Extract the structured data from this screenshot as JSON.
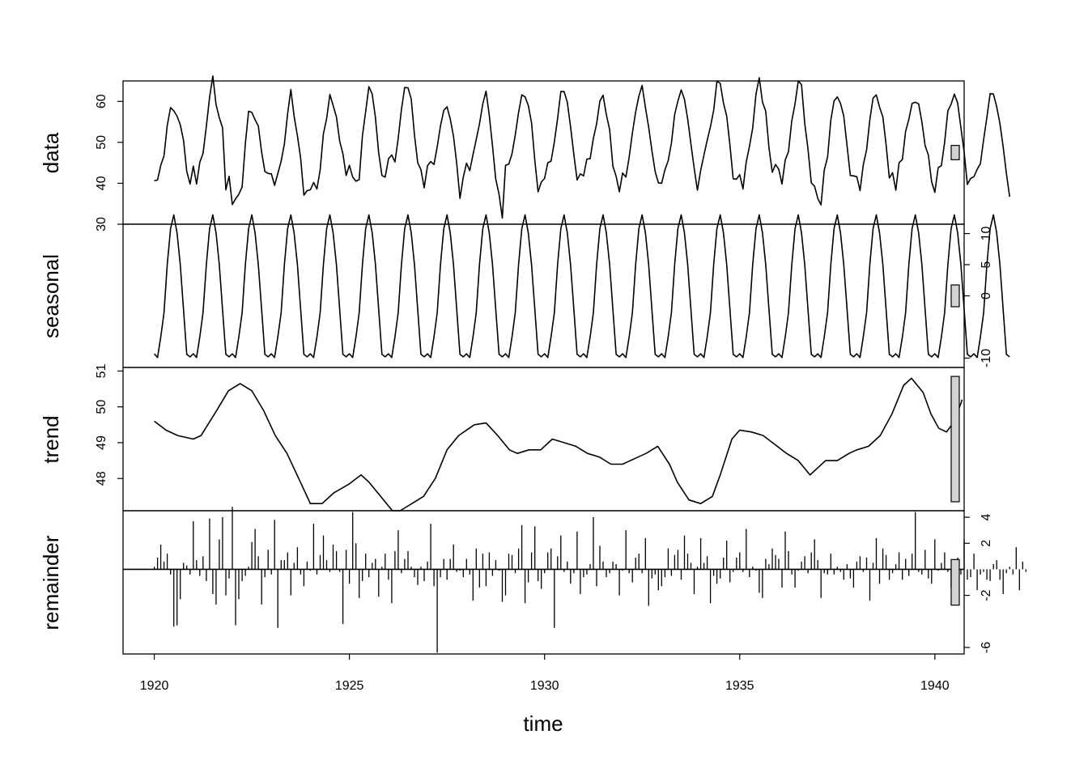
{
  "chart_data": {
    "type": "line",
    "xlabel": "time",
    "x_start": 1920,
    "frequency": 12,
    "xlim": [
      1919.2,
      1940.75
    ],
    "x_ticks": [
      1920,
      1925,
      1930,
      1935,
      1940
    ],
    "x_tick_labels": [
      "1920",
      "1925",
      "1930",
      "1935",
      "1940"
    ],
    "panels": [
      {
        "name": "data",
        "ylim": [
          30,
          65
        ],
        "y_ticks": [
          30,
          40,
          50,
          60
        ],
        "y_tick_labels": [
          "30",
          "40",
          "50",
          "60"
        ],
        "axis_side": "left",
        "values": [
          40.6,
          40.8,
          44.4,
          46.7,
          54.1,
          58.5,
          57.7,
          56.4,
          54.3,
          50.5,
          42.9,
          39.8,
          44.2,
          39.8,
          45.1,
          47.3,
          53.9,
          61.0,
          66.2,
          59.2,
          56.0,
          53.6,
          38.4,
          41.7,
          34.8,
          36.2,
          37.3,
          39.1,
          49.7,
          57.6,
          57.3,
          55.5,
          54.0,
          47.6,
          42.9,
          42.4,
          42.3,
          39.5,
          42.4,
          45.4,
          49.6,
          57.0,
          62.9,
          56.4,
          51.6,
          46.1,
          37.1,
          38.2,
          38.4,
          40.2,
          38.6,
          43.3,
          52.1,
          55.8,
          61.7,
          59.0,
          56.2,
          50.3,
          47.2,
          41.9,
          44.4,
          41.5,
          40.5,
          40.9,
          51.6,
          57.5,
          63.6,
          61.8,
          56.0,
          47.4,
          41.9,
          41.5,
          46.0,
          46.9,
          45.2,
          51.0,
          58.0,
          63.4,
          63.3,
          60.6,
          51.8,
          45.0,
          43.3,
          38.9,
          44.3,
          45.3,
          44.6,
          48.9,
          54.0,
          57.8,
          58.7,
          55.7,
          51.5,
          44.8,
          36.3,
          41.5,
          44.9,
          43.1,
          47.0,
          50.7,
          54.5,
          59.4,
          62.5,
          56.6,
          49.1,
          41.0,
          37.3,
          31.5,
          44.4,
          44.7,
          47.2,
          51.8,
          57.3,
          61.6,
          61.1,
          59.0,
          54.8,
          45.5,
          37.9,
          40.3,
          41.2,
          45.0,
          45.4,
          50.1,
          55.8,
          62.4,
          62.4,
          59.8,
          53.8,
          47.0,
          40.8,
          42.3,
          41.8,
          45.9,
          46.0,
          51.0,
          54.5,
          60.1,
          61.5,
          56.8,
          53.1,
          44.2,
          41.7,
          37.9,
          42.5,
          41.5,
          46.4,
          52.3,
          57.4,
          61.3,
          63.9,
          58.5,
          53.7,
          48.0,
          42.9,
          40.1,
          40.0,
          43.3,
          45.5,
          49.8,
          56.8,
          60.1,
          62.8,
          60.5,
          55.7,
          49.6,
          43.7,
          38.3,
          43.2,
          46.9,
          50.5,
          53.8,
          57.8,
          64.9,
          64.4,
          59.6,
          56.4,
          49.3,
          41.1,
          41.0,
          42.1,
          38.6,
          45.2,
          49.0,
          53.5,
          61.8,
          65.8,
          59.8,
          57.6,
          48.7,
          42.7,
          44.6,
          43.4,
          39.8,
          45.7,
          47.7,
          55.3,
          59.4,
          65.0,
          64.1,
          54.6,
          48.4,
          40.1,
          39.3,
          36.3,
          34.7,
          43.2,
          46.4,
          55.4,
          60.1,
          61.1,
          59.5,
          56.4,
          49.1,
          41.9,
          41.8,
          41.6,
          38.2,
          44.5,
          48.2,
          55.5,
          60.8,
          61.6,
          58.6,
          56.2,
          49.4,
          41.3,
          42.6,
          38.3,
          45.0,
          45.8,
          52.7,
          55.6,
          59.5,
          59.8,
          59.4,
          55.0,
          49.2,
          46.9,
          40.4,
          37.8,
          43.8,
          44.3,
          50.0,
          57.7,
          59.3,
          61.8,
          59.6,
          53.6,
          47.6,
          39.7,
          41.2,
          41.6,
          43.4,
          44.8,
          50.7,
          56.1,
          61.9,
          61.8,
          58.7,
          54.6,
          48.9,
          42.4,
          36.7
        ]
      },
      {
        "name": "seasonal",
        "ylim": [
          -11.5,
          11.5
        ],
        "y_ticks": [
          -10,
          0,
          5,
          10
        ],
        "y_tick_labels": [
          "-10",
          "0",
          "5",
          "10"
        ],
        "axis_side": "right",
        "pattern": [
          -9.3,
          -9.9,
          -6.6,
          -2.7,
          5.0,
          10.8,
          13.0,
          10.1,
          5.0,
          -2.2,
          -9.4,
          -9.8
        ]
      },
      {
        "name": "trend",
        "ylim": [
          47.1,
          51.1
        ],
        "y_ticks": [
          48,
          49,
          50,
          51
        ],
        "y_tick_labels": [
          "48",
          "49",
          "50",
          "51"
        ],
        "axis_side": "left",
        "points": [
          [
            1920.0,
            49.6
          ],
          [
            1920.3,
            49.35
          ],
          [
            1920.6,
            49.2
          ],
          [
            1921.0,
            49.1
          ],
          [
            1921.2,
            49.2
          ],
          [
            1921.6,
            49.9
          ],
          [
            1921.9,
            50.45
          ],
          [
            1922.2,
            50.65
          ],
          [
            1922.5,
            50.45
          ],
          [
            1922.8,
            49.9
          ],
          [
            1923.1,
            49.2
          ],
          [
            1923.4,
            48.7
          ],
          [
            1923.7,
            48.0
          ],
          [
            1924.0,
            47.3
          ],
          [
            1924.3,
            47.3
          ],
          [
            1924.6,
            47.6
          ],
          [
            1925.0,
            47.85
          ],
          [
            1925.3,
            48.1
          ],
          [
            1925.5,
            47.9
          ],
          [
            1925.8,
            47.5
          ],
          [
            1926.1,
            47.1
          ],
          [
            1926.3,
            47.1
          ],
          [
            1926.6,
            47.3
          ],
          [
            1926.9,
            47.5
          ],
          [
            1927.2,
            48.0
          ],
          [
            1927.5,
            48.8
          ],
          [
            1927.8,
            49.2
          ],
          [
            1928.2,
            49.5
          ],
          [
            1928.5,
            49.55
          ],
          [
            1928.8,
            49.2
          ],
          [
            1929.1,
            48.8
          ],
          [
            1929.3,
            48.7
          ],
          [
            1929.6,
            48.8
          ],
          [
            1929.9,
            48.8
          ],
          [
            1930.2,
            49.1
          ],
          [
            1930.5,
            49.0
          ],
          [
            1930.8,
            48.9
          ],
          [
            1931.1,
            48.7
          ],
          [
            1931.4,
            48.6
          ],
          [
            1931.7,
            48.4
          ],
          [
            1932.0,
            48.4
          ],
          [
            1932.3,
            48.55
          ],
          [
            1932.6,
            48.7
          ],
          [
            1932.9,
            48.9
          ],
          [
            1933.2,
            48.4
          ],
          [
            1933.4,
            47.9
          ],
          [
            1933.7,
            47.4
          ],
          [
            1934.0,
            47.3
          ],
          [
            1934.3,
            47.5
          ],
          [
            1934.5,
            48.1
          ],
          [
            1934.8,
            49.1
          ],
          [
            1935.0,
            49.35
          ],
          [
            1935.3,
            49.3
          ],
          [
            1935.6,
            49.2
          ],
          [
            1935.9,
            48.95
          ],
          [
            1936.2,
            48.7
          ],
          [
            1936.5,
            48.5
          ],
          [
            1936.8,
            48.1
          ],
          [
            1937.2,
            48.5
          ],
          [
            1937.5,
            48.5
          ],
          [
            1937.8,
            48.7
          ],
          [
            1938.0,
            48.8
          ],
          [
            1938.3,
            48.9
          ],
          [
            1938.6,
            49.2
          ],
          [
            1938.9,
            49.8
          ],
          [
            1939.2,
            50.6
          ],
          [
            1939.4,
            50.8
          ],
          [
            1939.7,
            50.4
          ],
          [
            1939.9,
            49.8
          ],
          [
            1940.1,
            49.4
          ],
          [
            1940.3,
            49.3
          ],
          [
            1940.5,
            49.6
          ],
          [
            1940.7,
            50.2
          ]
        ]
      },
      {
        "name": "remainder",
        "ylim": [
          -6.5,
          4.5
        ],
        "y_ticks": [
          -6,
          -2,
          2,
          4
        ],
        "y_tick_labels": [
          "-6",
          "-2",
          "2",
          "4"
        ],
        "axis_side": "right",
        "values": [
          0.2,
          0.9,
          1.9,
          0.6,
          1.2,
          -0.4,
          -4.4,
          -4.3,
          -2.3,
          0.5,
          0.3,
          -0.4,
          3.7,
          0.7,
          -0.5,
          1.0,
          -0.9,
          3.9,
          -1.9,
          -2.7,
          2.3,
          4.0,
          -2.0,
          -0.7,
          4.8,
          -4.3,
          -2.3,
          -0.9,
          -0.5,
          0.2,
          2.1,
          3.1,
          1.0,
          -2.7,
          -0.6,
          1.5,
          -0.4,
          3.8,
          -4.5,
          0.7,
          0.7,
          1.3,
          -2.0,
          0.5,
          1.7,
          -0.4,
          -1.3,
          0.6,
          -0.1,
          3.5,
          -0.4,
          1.1,
          2.6,
          0.7,
          -0.2,
          1.9,
          1.4,
          -0.2,
          -4.2,
          1.5,
          -1.1,
          4.4,
          2.0,
          -2.2,
          -0.9,
          1.2,
          -0.6,
          0.5,
          0.8,
          -2.1,
          0.2,
          1.2,
          -0.8,
          -2.6,
          1.4,
          3.0,
          -0.3,
          0.8,
          1.4,
          0.2,
          -0.6,
          -1.2,
          0.2,
          -0.9,
          0.6,
          3.5,
          -1.3,
          -6.4,
          -0.6,
          0.8,
          -0.8,
          0.8,
          1.9,
          -0.2,
          -0.1,
          -0.6,
          0.8,
          -0.4,
          -2.4,
          1.6,
          -1.4,
          1.2,
          -1.3,
          1.3,
          -0.5,
          0.7,
          -0.1,
          -2.5,
          -2.0,
          1.2,
          1.1,
          -0.3,
          1.6,
          3.4,
          -2.6,
          -1.0,
          1.3,
          3.3,
          -0.9,
          -1.5,
          -0.3,
          1.3,
          1.6,
          -4.5,
          1.0,
          2.6,
          -0.2,
          0.6,
          -1.1,
          -0.3,
          2.9,
          -1.9,
          -0.6,
          -0.4,
          0.4,
          4.0,
          -1.3,
          1.8,
          0.6,
          -0.6,
          -0.3,
          0.6,
          0.4,
          -2.0,
          -0.1,
          3.0,
          -0.3,
          -1.0,
          0.9,
          1.2,
          -0.3,
          2.4,
          -2.8,
          -0.7,
          -0.4,
          -1.6,
          -1.3,
          -0.6,
          1.6,
          -0.5,
          1.1,
          1.5,
          -0.8,
          2.6,
          1.2,
          0.5,
          -1.9,
          0.2,
          2.4,
          0.5,
          1.0,
          -2.6,
          -0.5,
          -1.1,
          -0.7,
          0.9,
          2.2,
          -1.0,
          -0.2,
          0.9,
          1.3,
          -0.2,
          3.1,
          -0.6,
          0.2,
          -0.1,
          -1.8,
          -2.2,
          0.8,
          0.4,
          1.6,
          1.1,
          0.8,
          -1.4,
          2.9,
          1.4,
          -0.4,
          -1.4,
          -0.1,
          0.6,
          1.0,
          -0.3,
          1.3,
          2.3,
          0.7,
          -2.2,
          -0.3,
          -0.4,
          1.2,
          -0.4,
          0.2,
          -0.2,
          -0.8,
          0.4,
          -0.7,
          -1.4,
          0.6,
          1.0,
          -0.2,
          0.9,
          -2.4,
          0.5,
          2.4,
          -1.1,
          1.6,
          1.1,
          -0.8,
          -0.3,
          0.4,
          1.3,
          -0.8,
          0.8,
          -0.5,
          1.2,
          4.4,
          -0.2,
          -0.4,
          1.5,
          -0.7,
          -1.1,
          2.3,
          -0.1,
          0.5,
          1.3,
          -0.2,
          -1.4,
          -1.5,
          0.9,
          -0.4,
          2.3,
          -0.8,
          -0.6,
          1.2,
          -1.6,
          -0.4,
          -0.2,
          -0.8,
          -0.9,
          0.4,
          0.7,
          -0.8,
          -1.9,
          -0.3,
          0.2,
          -0.4,
          1.7,
          -1.6,
          0.6,
          -0.2
        ]
      }
    ],
    "scale_bar_range": 3.5
  }
}
